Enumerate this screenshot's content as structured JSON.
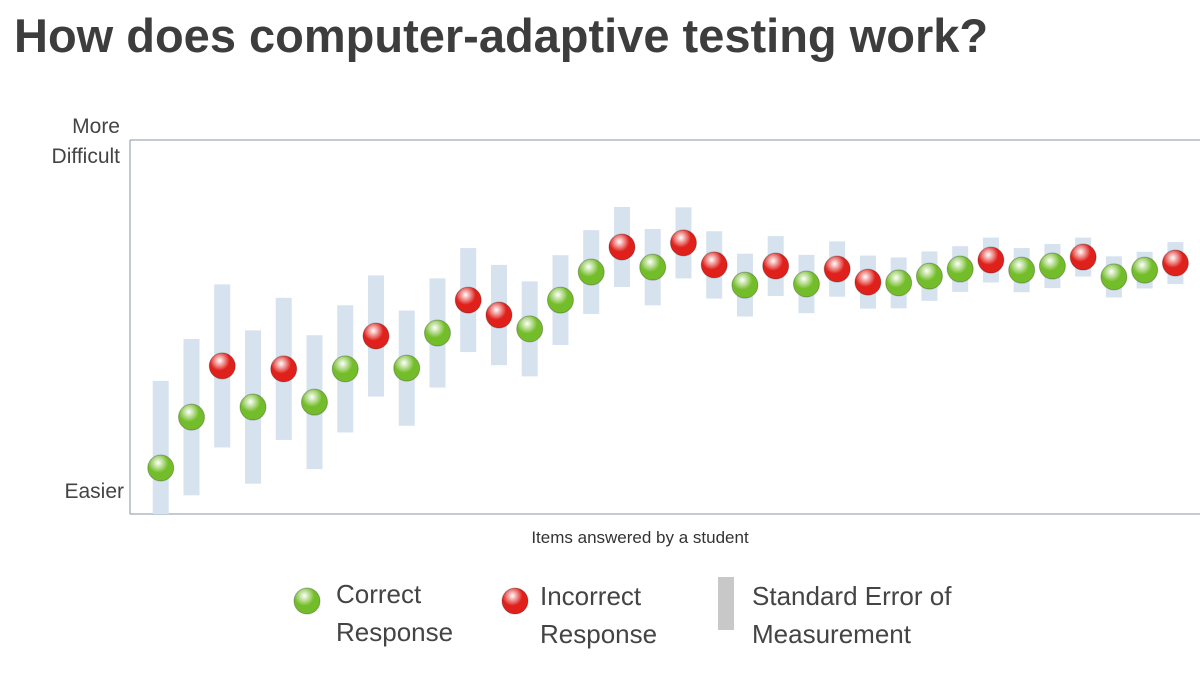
{
  "chart_data": {
    "type": "scatter",
    "title": "How does computer-adaptive testing work?",
    "x_label": "Items answered by a student",
    "y_top_label": "More Difficult",
    "y_bottom_label": "Easier",
    "xlim": [
      0,
      34.8
    ],
    "ylim": [
      0,
      100
    ],
    "grid": false,
    "error_label": "Standard Error of Measurement",
    "error_color": "#d6e2ee",
    "legend_color": "#c8c8c8",
    "series": [
      {
        "name": "Correct Response",
        "color": "#74bd2a",
        "x": [
          1,
          2,
          4,
          6,
          7,
          9,
          10,
          13,
          14,
          15,
          17,
          20,
          22,
          25,
          26,
          27,
          29,
          30,
          32,
          33
        ],
        "values": [
          12.3,
          25.9,
          28.6,
          29.9,
          38.8,
          39.0,
          48.4,
          49.5,
          57.2,
          64.7,
          66.0,
          61.2,
          61.5,
          61.8,
          63.6,
          65.5,
          65.2,
          66.3,
          63.4,
          65.2
        ],
        "errors": [
          23.3,
          20.9,
          20.5,
          17.9,
          17.0,
          15.4,
          14.6,
          12.7,
          12.0,
          11.2,
          10.2,
          8.4,
          7.8,
          6.8,
          6.6,
          6.1,
          5.9,
          5.9,
          5.5,
          4.9
        ]
      },
      {
        "name": "Incorrect Response",
        "color": "#e0201b",
        "x": [
          3,
          5,
          8,
          11,
          12,
          16,
          18,
          19,
          21,
          23,
          24,
          28,
          31,
          34
        ],
        "values": [
          39.6,
          38.8,
          47.6,
          57.2,
          53.2,
          71.4,
          72.5,
          66.6,
          66.3,
          65.5,
          62.0,
          67.9,
          68.7,
          67.1
        ],
        "errors": [
          21.8,
          19.0,
          16.2,
          13.9,
          13.4,
          10.7,
          9.5,
          9.0,
          8.0,
          7.4,
          7.1,
          6.0,
          5.2,
          5.6
        ]
      }
    ]
  }
}
